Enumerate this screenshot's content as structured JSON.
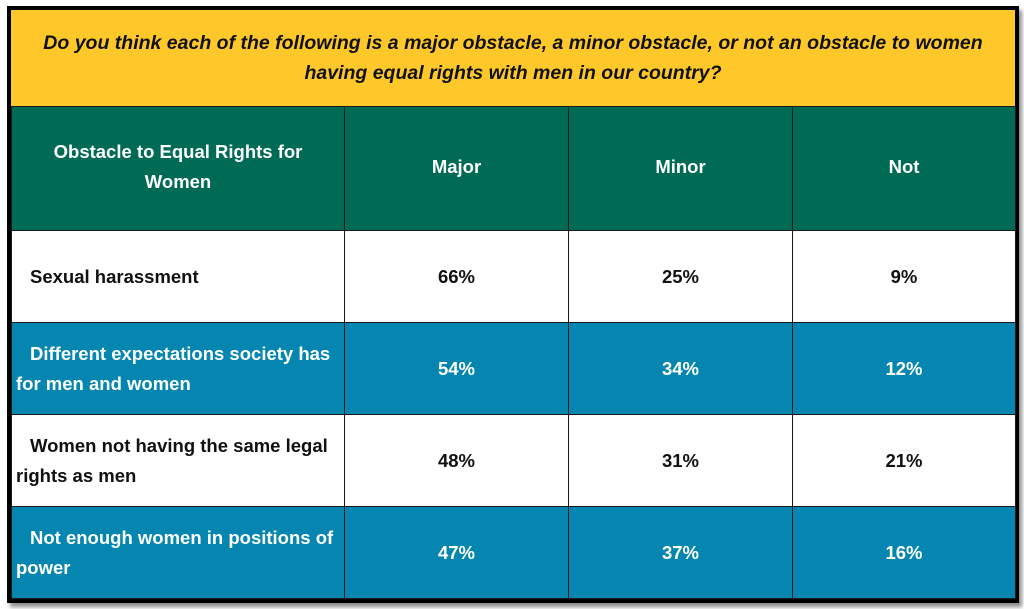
{
  "chart_data": {
    "type": "table",
    "title": "Do you think each of the following is a major obstacle, a minor obstacle, or not an obstacle to women having equal rights with men in our country?",
    "columns": [
      "Obstacle to Equal Rights for Women",
      "Major",
      "Minor",
      "Not"
    ],
    "rows": [
      {
        "label": "Sexual harassment",
        "values": [
          "66%",
          "25%",
          "9%"
        ]
      },
      {
        "label": "Different expectations society has for men and women",
        "values": [
          "54%",
          "34%",
          "12%"
        ]
      },
      {
        "label": "Women not having the same legal rights as men",
        "values": [
          "48%",
          "31%",
          "21%"
        ]
      },
      {
        "label": "Not enough women in positions of power",
        "values": [
          "47%",
          "37%",
          "16%"
        ]
      }
    ],
    "row_styles": [
      "white",
      "blue",
      "white",
      "blue"
    ]
  },
  "colors": {
    "title_bg": "#FFC82A",
    "header_bg": "#006B54",
    "row_alt_bg": "#0586B0",
    "row_bg": "#ffffff"
  }
}
